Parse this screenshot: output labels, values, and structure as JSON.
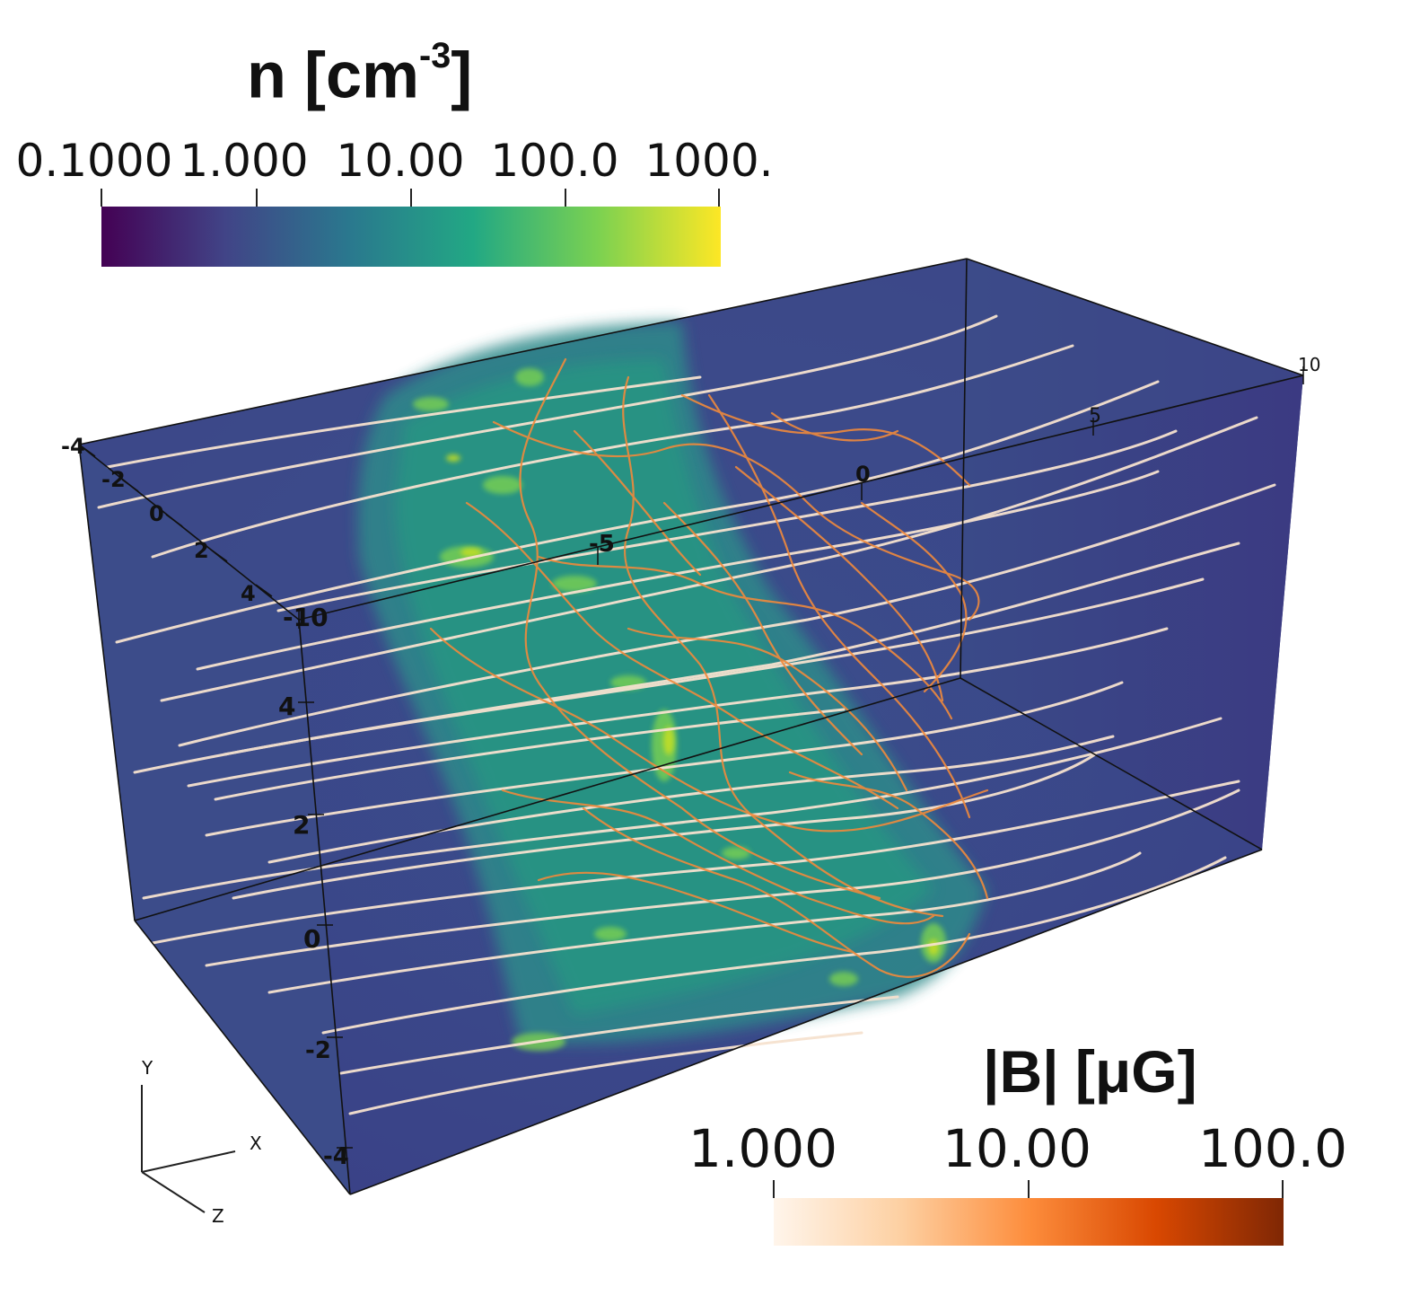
{
  "density_colorbar": {
    "title_main": "n [cm",
    "title_sup": "-3",
    "title_end": "]",
    "ticks": [
      "0.1000",
      "1.000",
      "10.00",
      "100.0",
      "1000."
    ],
    "colormap": [
      "#440154",
      "#414487",
      "#2a788e",
      "#22a884",
      "#7ad151",
      "#fde725"
    ]
  },
  "field_colorbar": {
    "title": "|B| [μG]",
    "ticks": [
      "1.000",
      "10.00",
      "100.0"
    ],
    "colormap": [
      "#fff5eb",
      "#fdd0a2",
      "#fd8d3c",
      "#d94801",
      "#7f2704"
    ]
  },
  "box_axes": {
    "x_ticks": [
      "-10",
      "-5",
      "0",
      "5",
      "10"
    ],
    "y_ticks": [
      "-4",
      "-2",
      "0",
      "2",
      "4"
    ],
    "z_ticks": [
      "-4",
      "-2",
      "0",
      "2",
      "4"
    ]
  },
  "orientation_triad": {
    "x": "X",
    "y": "Y",
    "z": "Z"
  }
}
